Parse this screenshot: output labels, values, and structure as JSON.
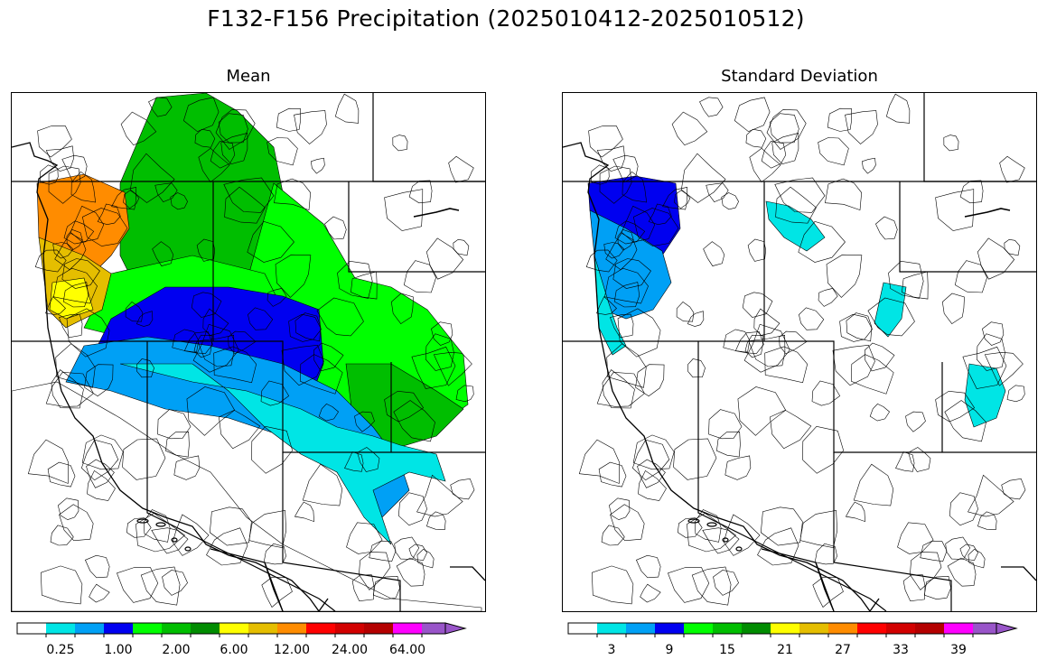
{
  "figure": {
    "title": "F132-F156 Precipitation (2025010412-2025010512)"
  },
  "palette": [
    "#ffffff",
    "#00e5e5",
    "#00a0f5",
    "#0000f0",
    "#00ff00",
    "#00be00",
    "#008c00",
    "#ffff00",
    "#e5be00",
    "#ff8c00",
    "#ff0000",
    "#d20000",
    "#b40000",
    "#ff00ff",
    "#9955c9"
  ],
  "panels": [
    {
      "id": "mean",
      "title": "Mean",
      "colorbar": {
        "tick_labels": [
          "0.25",
          "1.00",
          "2.00",
          "6.00",
          "12.00",
          "24.00",
          "64.00"
        ],
        "tick_bins": [
          1,
          3,
          5,
          7,
          9,
          11,
          13
        ],
        "extend": "max"
      },
      "regions": [
        {
          "name": "wa-coast",
          "color": "#ff8c00"
        },
        {
          "name": "or-coast",
          "color": "#e5be00"
        },
        {
          "name": "or-cascades",
          "color": "#ffff00"
        },
        {
          "name": "bc-interior",
          "color": "#00be00"
        },
        {
          "name": "idaho-panhandle",
          "color": "#00ff00"
        },
        {
          "name": "montana",
          "color": "#00ff00"
        },
        {
          "name": "nevada-band",
          "color": "#0000f0"
        },
        {
          "name": "utah-band",
          "color": "#00a0f5"
        },
        {
          "name": "great-basin",
          "color": "#00e5e5"
        },
        {
          "name": "colorado",
          "color": "#00be00"
        },
        {
          "name": "sw-rest",
          "color": "#ffffff"
        }
      ]
    },
    {
      "id": "std",
      "title": "Standard Deviation",
      "colorbar": {
        "tick_labels": [
          "3",
          "9",
          "15",
          "21",
          "27",
          "33",
          "39"
        ],
        "tick_bins": [
          1,
          3,
          5,
          7,
          9,
          11,
          13
        ],
        "extend": "max"
      },
      "regions": [
        {
          "name": "wa-coast",
          "color": "#0000f0"
        },
        {
          "name": "or-coast",
          "color": "#00a0f5"
        },
        {
          "name": "coastal-fringe",
          "color": "#00e5e5"
        },
        {
          "name": "id-patch",
          "color": "#00e5e5"
        },
        {
          "name": "wy-patch",
          "color": "#00e5e5"
        },
        {
          "name": "co-patch",
          "color": "#00e5e5"
        }
      ]
    }
  ]
}
